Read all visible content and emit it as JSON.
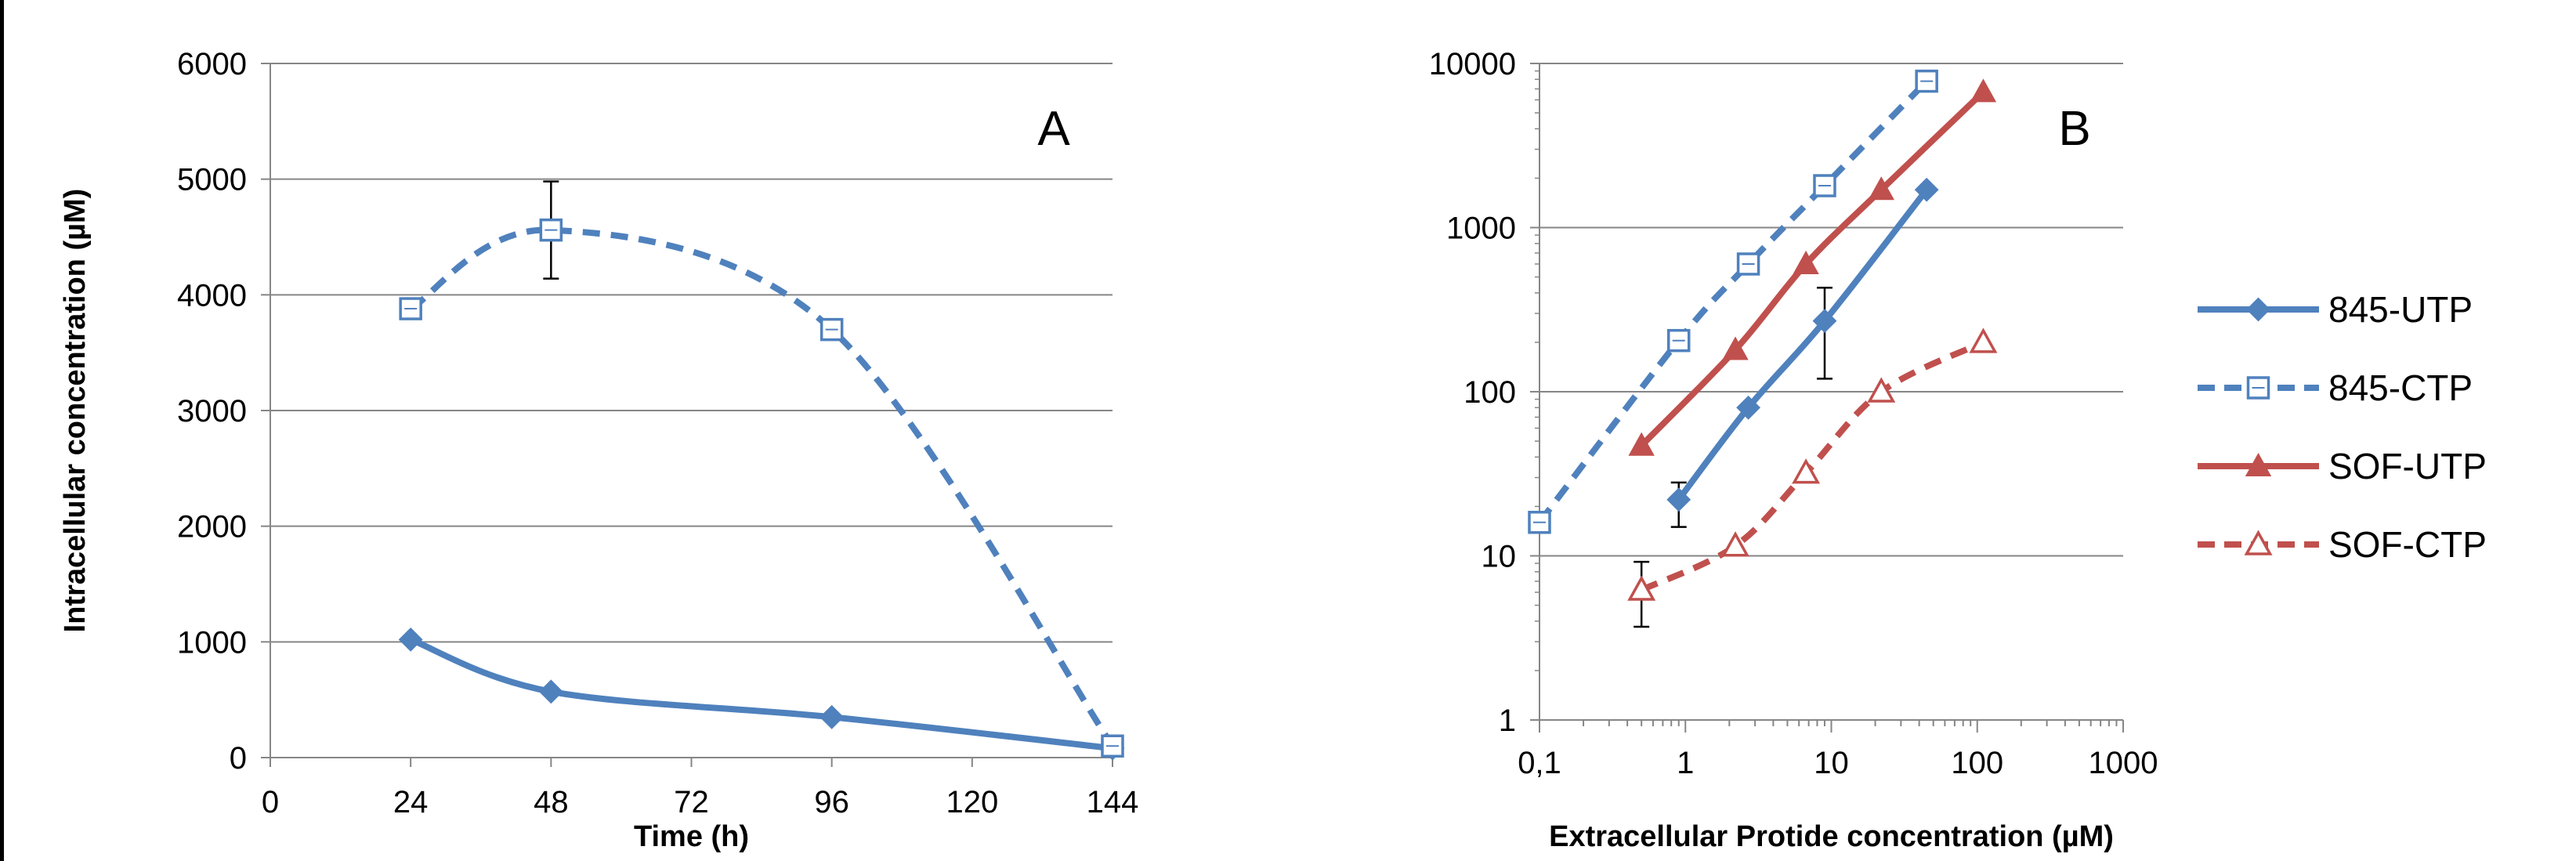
{
  "chart_data": [
    {
      "type": "line",
      "panel_label": "A",
      "xlabel": "Time (h)",
      "ylabel": "Intracellular concentration (µM)",
      "xlim": [
        0,
        144
      ],
      "ylim": [
        0,
        6000
      ],
      "x_ticks": [
        "0",
        "24",
        "48",
        "72",
        "96",
        "120",
        "144"
      ],
      "y_ticks": [
        "0",
        "1000",
        "2000",
        "3000",
        "4000",
        "5000",
        "6000"
      ],
      "grid": "horizontal",
      "series": [
        {
          "name": "845-UTP",
          "color": "#4F81BD",
          "dashed": false,
          "marker": "diamond-filled",
          "points": [
            {
              "x": 24,
              "y": 1020
            },
            {
              "x": 48,
              "y": 570
            },
            {
              "x": 96,
              "y": 350
            },
            {
              "x": 144,
              "y": 80
            }
          ]
        },
        {
          "name": "845-CTP",
          "color": "#4F81BD",
          "dashed": true,
          "marker": "square-open",
          "points": [
            {
              "x": 24,
              "y": 3880,
              "err": 60
            },
            {
              "x": 48,
              "y": 4560,
              "err": 420
            },
            {
              "x": 96,
              "y": 3700,
              "err": 60
            },
            {
              "x": 144,
              "y": 100
            }
          ]
        }
      ]
    },
    {
      "type": "line",
      "panel_label": "B",
      "xlabel": "Extracellular Protide concentration (µM)",
      "ylabel": "",
      "x_scale": "log",
      "y_scale": "log",
      "xlim": [
        0.1,
        1000
      ],
      "ylim": [
        1,
        10000
      ],
      "x_ticks": [
        "0,1",
        "1",
        "10",
        "100",
        "1000"
      ],
      "y_ticks": [
        "1",
        "10",
        "100",
        "1000",
        "10000"
      ],
      "grid": "horizontal",
      "legend_position": "right",
      "series": [
        {
          "name": "845-UTP",
          "color": "#4F81BD",
          "dashed": false,
          "marker": "diamond-filled",
          "points": [
            {
              "x": 0.9,
              "y": 22,
              "err_lo": 15,
              "err_hi": 28
            },
            {
              "x": 2.7,
              "y": 80
            },
            {
              "x": 9,
              "y": 270,
              "err_lo": 120,
              "err_hi": 430
            },
            {
              "x": 45,
              "y": 1700
            }
          ]
        },
        {
          "name": "845-CTP",
          "color": "#4F81BD",
          "dashed": true,
          "marker": "square-open",
          "points": [
            {
              "x": 0.1,
              "y": 16
            },
            {
              "x": 0.9,
              "y": 205
            },
            {
              "x": 2.7,
              "y": 600
            },
            {
              "x": 9,
              "y": 1800
            },
            {
              "x": 45,
              "y": 7800
            }
          ]
        },
        {
          "name": "SOF-UTP",
          "color": "#C0504D",
          "dashed": false,
          "marker": "triangle-filled",
          "points": [
            {
              "x": 0.5,
              "y": 47
            },
            {
              "x": 2.2,
              "y": 180
            },
            {
              "x": 6.7,
              "y": 600
            },
            {
              "x": 22,
              "y": 1700
            },
            {
              "x": 110,
              "y": 6700
            }
          ]
        },
        {
          "name": "SOF-CTP",
          "color": "#C0504D",
          "dashed": true,
          "marker": "triangle-open",
          "points": [
            {
              "x": 0.5,
              "y": 6.2,
              "err_lo": 3.7,
              "err_hi": 9.2
            },
            {
              "x": 2.2,
              "y": 11.5
            },
            {
              "x": 6.7,
              "y": 32
            },
            {
              "x": 22,
              "y": 100
            },
            {
              "x": 110,
              "y": 200
            }
          ]
        }
      ]
    }
  ]
}
